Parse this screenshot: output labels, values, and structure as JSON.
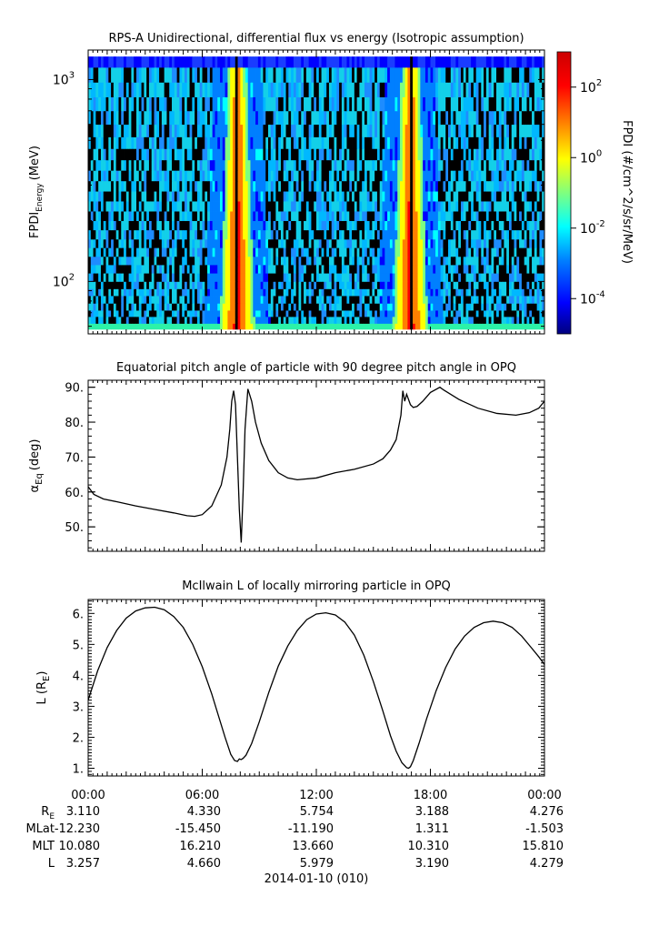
{
  "chart_data": [
    {
      "type": "heatmap",
      "title": "RPS-A Unidirectional, differential flux vs energy (Isotropic assumption)",
      "ylabel_main": "FPDI",
      "ylabel_sub": "Energy",
      "ylabel_unit": "(MeV)",
      "y_scale": "log",
      "ylim": [
        55,
        1400
      ],
      "yticks": [
        {
          "value": 100,
          "base": "10",
          "exp": "2"
        },
        {
          "value": 1000,
          "base": "10",
          "exp": "3"
        }
      ],
      "x_range_hours": [
        0,
        24
      ],
      "energy_bins_mev": [
        58,
        62,
        67,
        72,
        78,
        85,
        92,
        100,
        110,
        121,
        133,
        147,
        162,
        180,
        200,
        223,
        250,
        280,
        315,
        355,
        400,
        455,
        520,
        600,
        700,
        820,
        970,
        1150,
        1300
      ],
      "flux_peaks_hours": [
        7.85,
        16.95
      ],
      "colorbar": {
        "label": "FPDI (#/cm^2/s/sr/MeV)",
        "scale": "log",
        "range": [
          1e-05,
          1000
        ],
        "ticks": [
          {
            "value": 0.0001,
            "base": "10",
            "exp": "-4"
          },
          {
            "value": 0.01,
            "base": "10",
            "exp": "-2"
          },
          {
            "value": 1,
            "base": "10",
            "exp": "0"
          },
          {
            "value": 100,
            "base": "10",
            "exp": "2"
          }
        ]
      },
      "colors": [
        "#00007f",
        "#0000ff",
        "#007fff",
        "#00ffff",
        "#7fff7f",
        "#ffff00",
        "#ff7f00",
        "#ff0000",
        "#7f0000"
      ]
    },
    {
      "type": "line",
      "title": "Equatorial pitch angle of particle with 90 degree pitch angle in OPQ",
      "ylabel_main": "α",
      "ylabel_sub": "Eq",
      "ylabel_unit": "(deg)",
      "ylim": [
        43,
        92
      ],
      "yticks": [
        "50.",
        "60.",
        "70.",
        "80.",
        "90."
      ],
      "x": [
        0,
        0.3,
        0.8,
        1.5,
        2.5,
        3.5,
        4.5,
        5.2,
        5.6,
        6.0,
        6.5,
        7.0,
        7.3,
        7.45,
        7.55,
        7.65,
        7.75,
        7.85,
        7.95,
        8.05,
        8.15,
        8.25,
        8.4,
        8.6,
        8.8,
        9.1,
        9.5,
        10,
        10.5,
        11,
        12,
        13,
        14,
        15,
        15.5,
        15.9,
        16.2,
        16.45,
        16.55,
        16.65,
        16.75,
        16.85,
        16.95,
        17.1,
        17.3,
        17.6,
        18,
        18.5,
        18.7,
        19.5,
        20.5,
        21.5,
        22.5,
        23.2,
        23.7,
        24
      ],
      "y": [
        61.5,
        59.3,
        58.0,
        57.2,
        56.0,
        55.0,
        54.0,
        53.2,
        53.0,
        53.5,
        56,
        62,
        70,
        78,
        86,
        89,
        85,
        70,
        55,
        45.5,
        60,
        78,
        89.5,
        86,
        80,
        74,
        69,
        65.5,
        64,
        63.5,
        64,
        65.5,
        66.5,
        68,
        69.5,
        72,
        75,
        82,
        89,
        86,
        88,
        86.5,
        85,
        84.2,
        84.5,
        86,
        88.5,
        90,
        89.2,
        86.5,
        84,
        82.5,
        82,
        82.7,
        84,
        86
      ]
    },
    {
      "type": "line",
      "title": "McIlwain L of locally mirroring particle in OPQ",
      "ylabel_main": "L (R",
      "ylabel_sub": "E",
      "ylabel_unit": ")",
      "ylim": [
        0.75,
        6.45
      ],
      "yticks": [
        "1.",
        "2.",
        "3.",
        "4.",
        "5.",
        "6."
      ],
      "x": [
        0,
        0.5,
        1,
        1.5,
        2,
        2.5,
        3,
        3.5,
        4,
        4.5,
        5,
        5.5,
        6,
        6.5,
        6.9,
        7.2,
        7.5,
        7.7,
        7.85,
        7.95,
        8.05,
        8.15,
        8.3,
        8.6,
        9,
        9.5,
        10,
        10.5,
        11,
        11.5,
        12,
        12.5,
        13,
        13.5,
        14,
        14.5,
        15,
        15.5,
        15.9,
        16.2,
        16.5,
        16.75,
        16.85,
        16.95,
        17.1,
        17.4,
        17.8,
        18.3,
        18.8,
        19.3,
        19.8,
        20.3,
        20.8,
        21.3,
        21.8,
        22.3,
        22.8,
        23.3,
        23.7,
        24
      ],
      "y": [
        3.2,
        4.15,
        4.9,
        5.45,
        5.85,
        6.08,
        6.18,
        6.2,
        6.12,
        5.9,
        5.55,
        5.0,
        4.28,
        3.4,
        2.6,
        2.0,
        1.45,
        1.25,
        1.22,
        1.3,
        1.28,
        1.32,
        1.42,
        1.8,
        2.5,
        3.45,
        4.3,
        4.95,
        5.45,
        5.8,
        5.98,
        6.02,
        5.95,
        5.72,
        5.3,
        4.65,
        3.8,
        2.85,
        2.05,
        1.55,
        1.18,
        1.02,
        1.0,
        1.05,
        1.25,
        1.8,
        2.6,
        3.5,
        4.25,
        4.85,
        5.27,
        5.55,
        5.7,
        5.75,
        5.7,
        5.55,
        5.27,
        4.9,
        4.6,
        4.35
      ]
    }
  ],
  "x_axis": {
    "tick_labels": [
      "00:00",
      "06:00",
      "12:00",
      "18:00",
      "00:00"
    ],
    "tick_hours": [
      0,
      6,
      12,
      18,
      24
    ],
    "row_labels": [
      {
        "main": "R",
        "sub": "E"
      },
      {
        "main": "MLat",
        "sub": ""
      },
      {
        "main": "MLT",
        "sub": ""
      },
      {
        "main": "L",
        "sub": ""
      }
    ],
    "rows": [
      [
        "3.110",
        "4.330",
        "5.754",
        "3.188",
        "4.276"
      ],
      [
        "-12.230",
        "-15.450",
        "-11.190",
        "1.311",
        "-1.503"
      ],
      [
        "10.080",
        "16.210",
        "13.660",
        "10.310",
        "15.810"
      ],
      [
        "3.257",
        "4.660",
        "5.979",
        "3.190",
        "4.279"
      ]
    ],
    "date_label": "2014-01-10 (010)"
  }
}
